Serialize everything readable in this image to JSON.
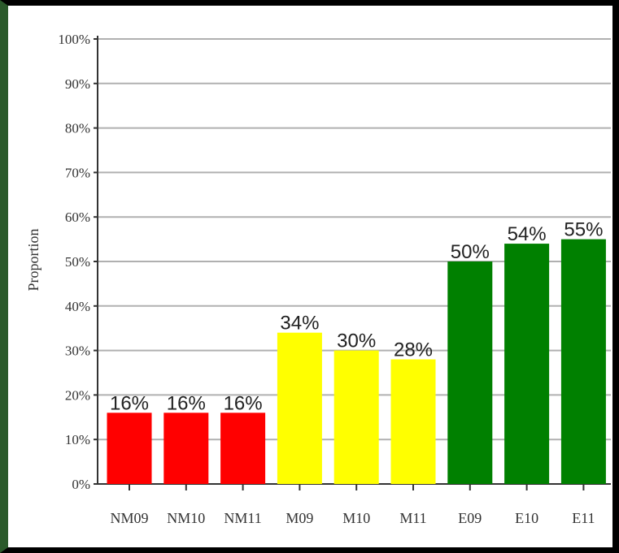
{
  "chart_data": {
    "type": "bar",
    "title": "",
    "xlabel": "",
    "ylabel": "Proportion",
    "ylim": [
      0,
      100
    ],
    "y_ticks": [
      "0%",
      "10%",
      "20%",
      "30%",
      "40%",
      "50%",
      "60%",
      "70%",
      "80%",
      "90%",
      "100%"
    ],
    "grid": true,
    "categories": [
      "NM09",
      "NM10",
      "NM11",
      "M09",
      "M10",
      "M11",
      "E09",
      "E10",
      "E11"
    ],
    "values": [
      16,
      16,
      16,
      34,
      30,
      28,
      50,
      54,
      55
    ],
    "data_labels": [
      "16%",
      "16%",
      "16%",
      "34%",
      "30%",
      "28%",
      "50%",
      "54%",
      "55%"
    ],
    "bar_colors": [
      "#ff0000",
      "#ff0000",
      "#ff0000",
      "#ffff00",
      "#ffff00",
      "#ffff00",
      "#008000",
      "#008000",
      "#008000"
    ]
  },
  "colors": {
    "frame_left": "#2b5a2b",
    "frame_border": "#000000",
    "grid": "#b0b0b0",
    "axis": "#333333"
  }
}
